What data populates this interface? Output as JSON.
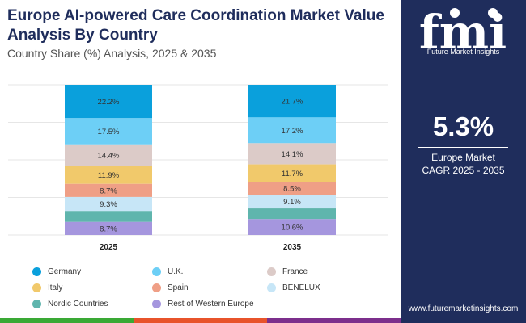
{
  "title": "Europe AI-powered Care Coordination Market Value Analysis By Country",
  "subtitle": "Country Share (%) Analysis, 2025 & 2035",
  "brand": {
    "logo_text": "fmi",
    "name": "Future Market Insights",
    "website": "www.futuremarketinsights.com",
    "panel_color": "#1f2d5c"
  },
  "cagr": {
    "value": "5.3%",
    "label_line1": "Europe Market",
    "label_line2": "CAGR 2025 - 2035"
  },
  "bottom_bar_colors": [
    "#3aa935",
    "#e8532b",
    "#7c2f8c"
  ],
  "chart_data": {
    "type": "bar",
    "stacked": true,
    "categories": [
      "2025",
      "2035"
    ],
    "series": [
      {
        "name": "Germany",
        "color": "#0aa0dc",
        "values": [
          22.2,
          21.7
        ]
      },
      {
        "name": "U.K.",
        "color": "#6dcff6",
        "values": [
          17.5,
          17.2
        ]
      },
      {
        "name": "France",
        "color": "#dccbc8",
        "values": [
          14.4,
          14.1
        ]
      },
      {
        "name": "Italy",
        "color": "#f1c96b",
        "values": [
          11.9,
          11.7
        ]
      },
      {
        "name": "Spain",
        "color": "#ef9f86",
        "values": [
          8.7,
          8.5
        ]
      },
      {
        "name": "BENELUX",
        "color": "#c7e6f7",
        "values": [
          9.3,
          9.1
        ]
      },
      {
        "name": "Nordic Countries",
        "color": "#5fb5ad",
        "values": [
          null,
          null
        ]
      },
      {
        "name": "Rest of Western Europe",
        "color": "#a596de",
        "values": [
          8.7,
          10.6
        ]
      }
    ],
    "xlabel": "",
    "ylabel": "",
    "ylim": [
      0,
      100
    ],
    "grid": true,
    "legend_position": "bottom"
  }
}
